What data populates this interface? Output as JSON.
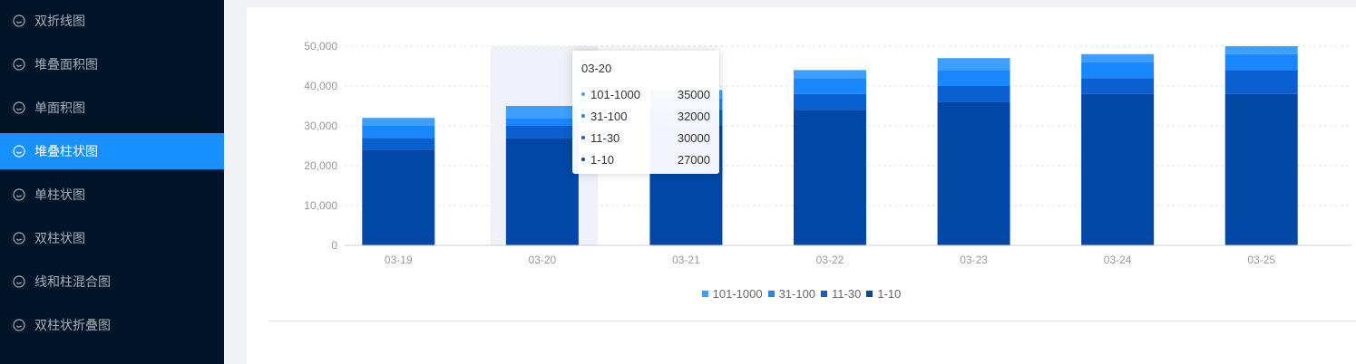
{
  "sidebar": {
    "items": [
      {
        "label": "双折线图",
        "icon": "smile-icon",
        "active": false
      },
      {
        "label": "堆叠面积图",
        "icon": "smile-icon",
        "active": false
      },
      {
        "label": "单面积图",
        "icon": "smile-icon",
        "active": false
      },
      {
        "label": "堆叠柱状图",
        "icon": "smile-icon",
        "active": true
      },
      {
        "label": "单柱状图",
        "icon": "smile-icon",
        "active": false
      },
      {
        "label": "双柱状图",
        "icon": "smile-icon",
        "active": false
      },
      {
        "label": "线和柱混合图",
        "icon": "smile-icon",
        "active": false
      },
      {
        "label": "双柱状折叠图",
        "icon": "smile-icon",
        "active": false
      }
    ]
  },
  "colors": {
    "sidebar_bg": "#001529",
    "active_bg": "#1890ff"
  },
  "chart_data": {
    "type": "bar",
    "stacked": true,
    "categories": [
      "03-19",
      "03-20",
      "03-21",
      "03-22",
      "03-23",
      "03-24",
      "03-25"
    ],
    "series": [
      {
        "name": "1-10",
        "color": "#0047a6",
        "values": [
          24000,
          27000,
          30000,
          34000,
          36000,
          38000,
          38000
        ]
      },
      {
        "name": "11-30",
        "color": "#0a5fd1",
        "values": [
          3000,
          3000,
          4000,
          4000,
          4000,
          4000,
          6000
        ]
      },
      {
        "name": "31-100",
        "color": "#1a87ff",
        "values": [
          3000,
          2000,
          3000,
          4000,
          4000,
          4000,
          4000
        ]
      },
      {
        "name": "101-1000",
        "color": "#3da0ff",
        "values": [
          2000,
          3000,
          2000,
          2000,
          3000,
          2000,
          2000
        ]
      }
    ],
    "yticks": [
      "0",
      "10,000",
      "20,000",
      "30,000",
      "40,000",
      "50,000"
    ],
    "ylim": [
      0,
      50000
    ],
    "grid": true,
    "legend_position": "bottom",
    "highlight_category": "03-20",
    "tooltip": {
      "title": "03-20",
      "rows": [
        {
          "name": "101-1000",
          "value": "35000",
          "color": "#3da0ff"
        },
        {
          "name": "31-100",
          "value": "32000",
          "color": "#1a87ff"
        },
        {
          "name": "11-30",
          "value": "30000",
          "color": "#0a5fd1"
        },
        {
          "name": "1-10",
          "value": "27000",
          "color": "#0047a6"
        }
      ]
    }
  }
}
